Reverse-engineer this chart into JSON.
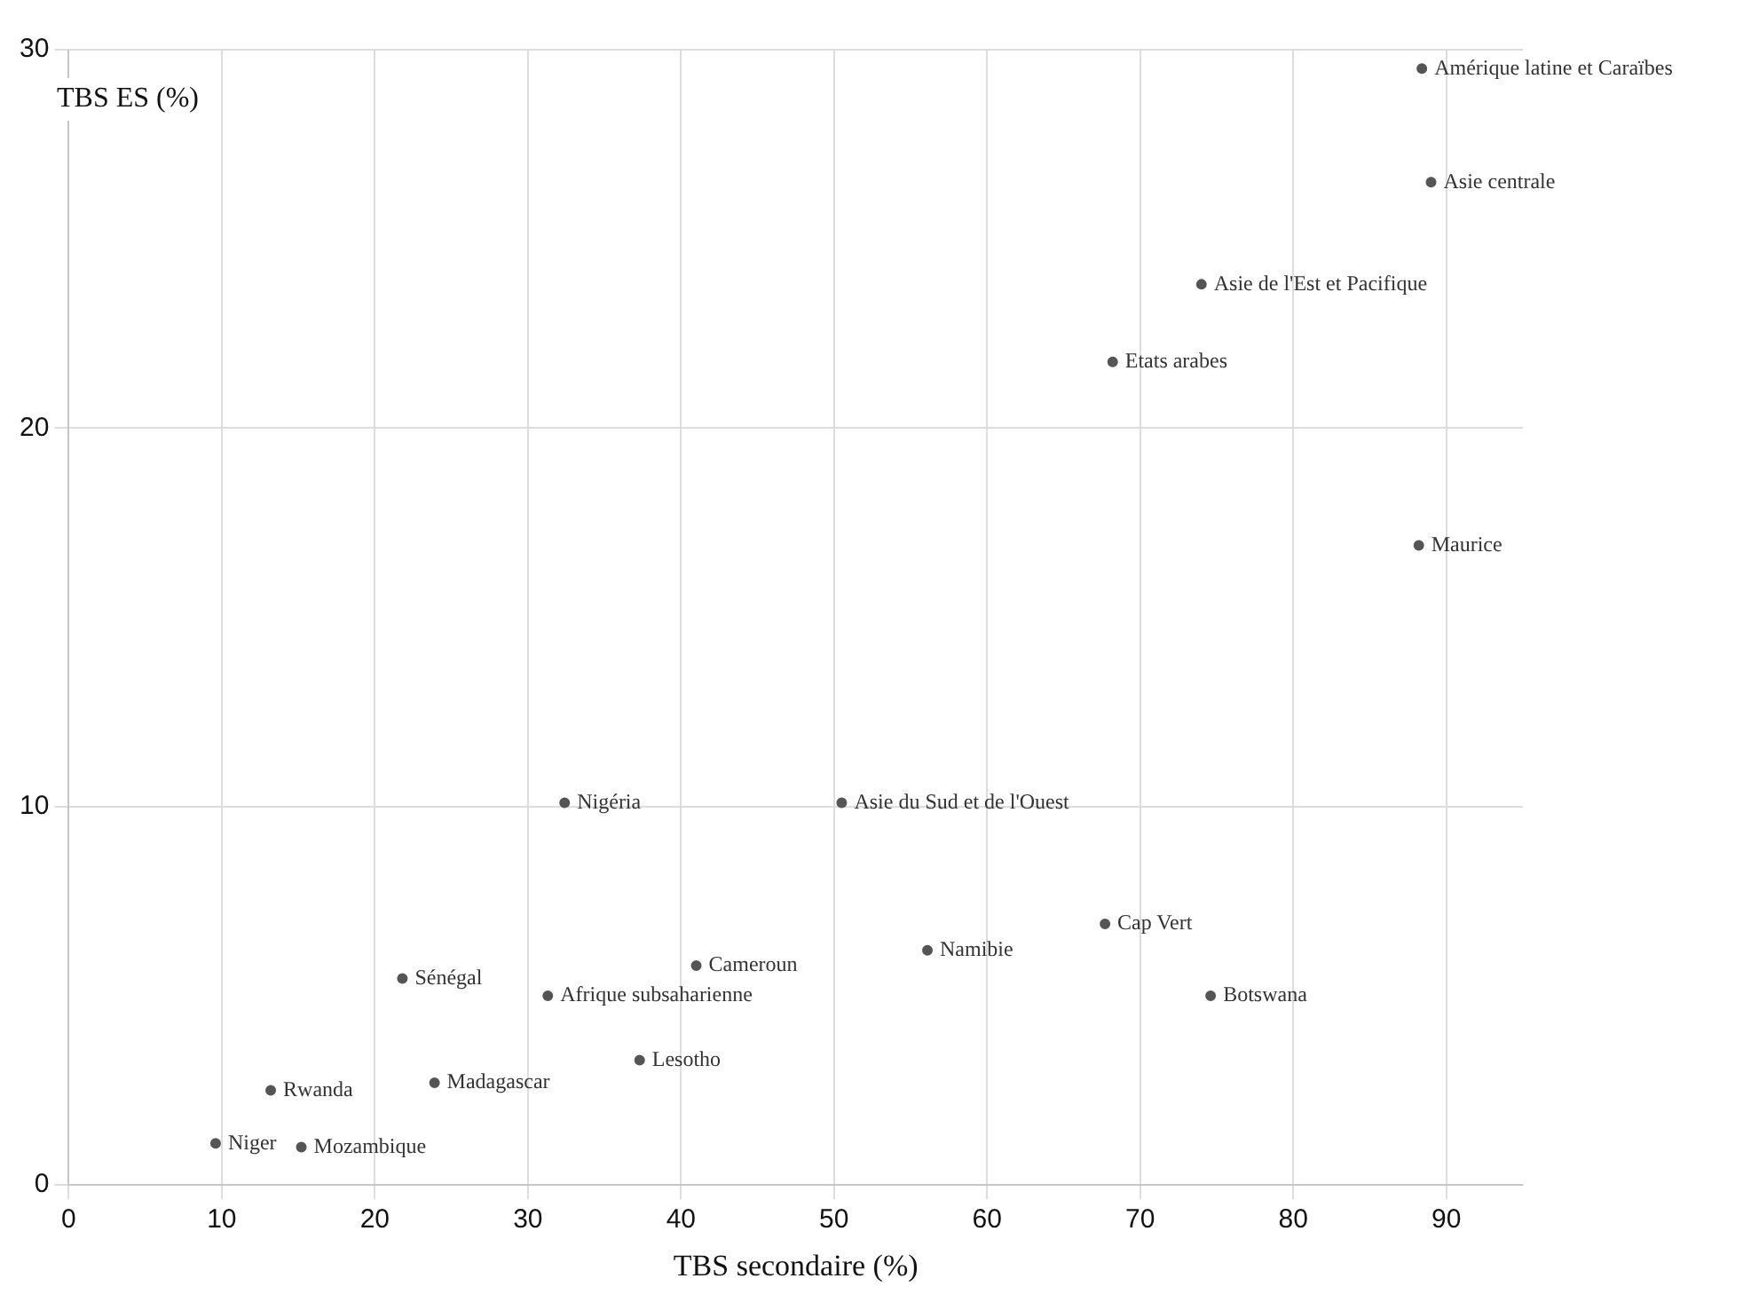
{
  "chart_data": {
    "type": "scatter",
    "xlabel": "TBS secondaire (%)",
    "ylabel": "TBS ES (%)",
    "x": [
      88.4,
      89,
      74,
      68.2,
      88.2,
      32.4,
      50.5,
      56.1,
      67.7,
      74.6,
      41,
      31.3,
      37.3,
      21.8,
      23.9,
      13.2,
      9.6,
      15.2
    ],
    "series": [
      {
        "color": "#555555",
        "values": [
          29.5,
          26.5,
          23.8,
          21.75,
          16.9,
          10.1,
          10.1,
          6.2,
          6.9,
          5.0,
          5.8,
          5.0,
          3.3,
          5.46,
          2.7,
          2.5,
          1.1,
          1.0
        ]
      }
    ],
    "xlim": [
      0,
      95
    ],
    "xticks": [
      0,
      10,
      20,
      30,
      40,
      50,
      60,
      70,
      80,
      90
    ],
    "ylim": [
      0,
      30
    ],
    "yticks": [
      0,
      10,
      20,
      30
    ],
    "grid": true,
    "legend": false,
    "marker": "circle",
    "annotations": [
      {
        "text": "Amérique latine et Caraïbes",
        "x": 88.4,
        "y": 29.5
      },
      {
        "text": "Asie centrale",
        "x": 89,
        "y": 26.5
      },
      {
        "text": "Asie de l'Est et Pacifique",
        "x": 74,
        "y": 23.8
      },
      {
        "text": "Etats arabes",
        "x": 68.2,
        "y": 21.75
      },
      {
        "text": "Maurice",
        "x": 88.2,
        "y": 16.9
      },
      {
        "text": "Nigéria",
        "x": 32.4,
        "y": 10.1
      },
      {
        "text": "Asie du Sud et de l'Ouest",
        "x": 50.5,
        "y": 10.1
      },
      {
        "text": "Namibie",
        "x": 56.1,
        "y": 6.2
      },
      {
        "text": "Cap Vert",
        "x": 67.7,
        "y": 6.9
      },
      {
        "text": "Botswana",
        "x": 74.6,
        "y": 5.0
      },
      {
        "text": "Cameroun",
        "x": 41,
        "y": 5.8
      },
      {
        "text": "Afrique subsaharienne",
        "x": 31.3,
        "y": 5.0
      },
      {
        "text": "Lesotho",
        "x": 37.3,
        "y": 3.3
      },
      {
        "text": "Sénégal",
        "x": 21.8,
        "y": 5.46
      },
      {
        "text": "Madagascar",
        "x": 23.9,
        "y": 2.7
      },
      {
        "text": "Rwanda",
        "x": 13.2,
        "y": 2.5
      },
      {
        "text": "Niger",
        "x": 9.6,
        "y": 1.1
      },
      {
        "text": "Mozambique",
        "x": 15.2,
        "y": 1.0
      }
    ]
  }
}
